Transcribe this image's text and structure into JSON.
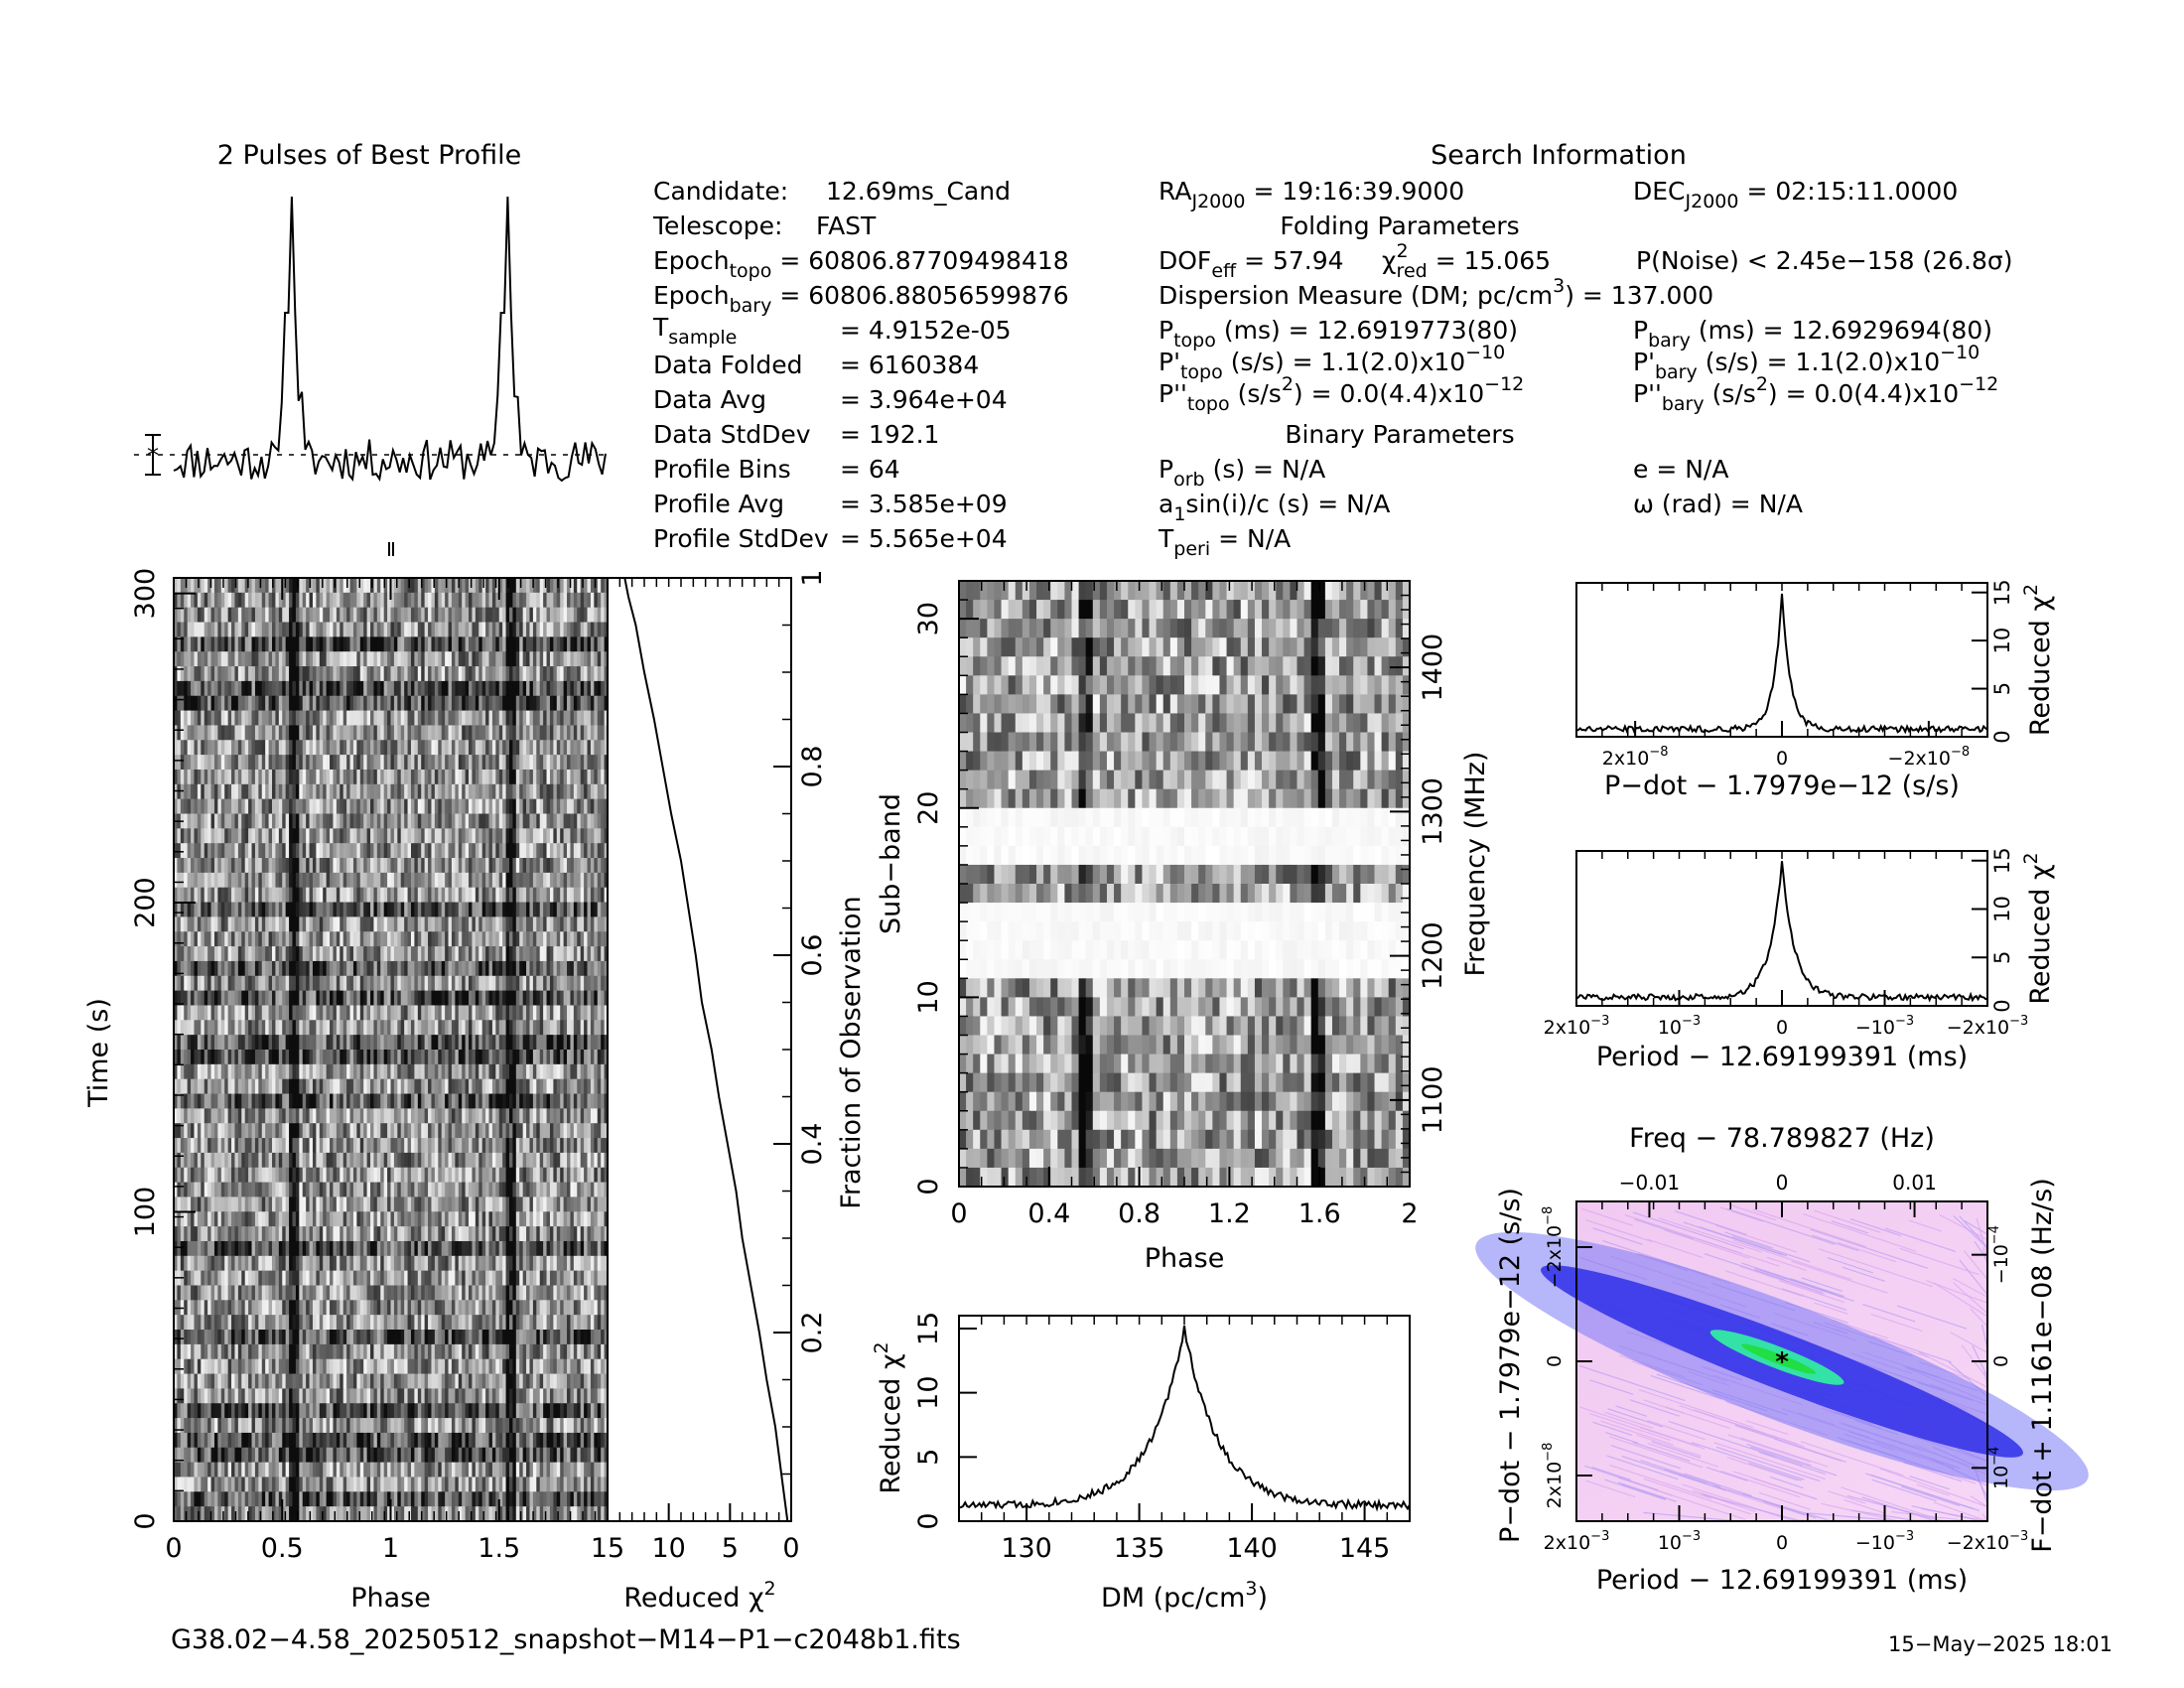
{
  "profile_title": "2 Pulses of Best Profile",
  "search_info": {
    "title": "Search Information",
    "candidate": {
      "label": "Candidate:",
      "value": "12.69ms_Cand"
    },
    "telescope": {
      "label": "Telescope:",
      "value": "FAST"
    },
    "epoch_topo": {
      "label": "Epoch",
      "sub": "topo",
      "value": "= 60806.87709498418"
    },
    "epoch_bary": {
      "label": "Epoch",
      "sub": "bary",
      "value": "= 60806.88056599876"
    },
    "t_sample": {
      "label": "T",
      "sub": "sample",
      "value": "=   4.9152e-05"
    },
    "data_folded": {
      "label": "Data Folded",
      "value": "=   6160384"
    },
    "data_avg": {
      "label": "Data Avg",
      "value": "=   3.964e+04"
    },
    "data_stddev": {
      "label": "Data StdDev",
      "value": "=   192.1"
    },
    "profile_bins": {
      "label": "Profile Bins",
      "value": "=   64"
    },
    "profile_avg": {
      "label": "Profile Avg",
      "value": "=   3.585e+09"
    },
    "profile_stddev": {
      "label": "Profile StdDev",
      "value": "=   5.565e+04"
    },
    "ra": {
      "label": "RA",
      "sub": "J2000",
      "value": "= 19:16:39.9000"
    },
    "dec": {
      "label": "DEC",
      "sub": "J2000",
      "value": "= 02:15:11.0000"
    },
    "folding_title": "Folding Parameters",
    "dof": {
      "label": "DOF",
      "sub": "eff",
      "value": "= 57.94"
    },
    "chi2": {
      "label": "χ",
      "sup": "2",
      "sub": "red",
      "value": "= 15.065"
    },
    "pnoise": "P(Noise) < 2.45e−158  (26.8σ)",
    "dm": {
      "label": "Dispersion Measure (DM; pc/cm",
      "sup": "3",
      "value": ") = 137.000"
    },
    "p_topo": {
      "label": "P",
      "sub": "topo",
      "value": "(ms)  =  12.6919773(80)"
    },
    "p_bary": {
      "label": "P",
      "sub": "bary",
      "value": "(ms)  =  12.6929694(80)"
    },
    "pd_topo": {
      "label": "P'",
      "sub": "topo",
      "value": "(s/s)  =  1.1(2.0)x10",
      "exp": "−10"
    },
    "pd_bary": {
      "label": "P'",
      "sub": "bary",
      "value": "(s/s)  =  1.1(2.0)x10",
      "exp": "−10"
    },
    "pdd_topo": {
      "label": "P''",
      "sub": "topo",
      "value": "(s/s",
      "sup": "2",
      "value2": ") = 0.0(4.4)x10",
      "exp": "−12"
    },
    "pdd_bary": {
      "label": "P''",
      "sub": "bary",
      "value": "(s/s",
      "sup": "2",
      "value2": ") = 0.0(4.4)x10",
      "exp": "−12"
    },
    "binary_title": "Binary Parameters",
    "porb": {
      "label": "P",
      "sub": "orb",
      "value": "(s) = N/A"
    },
    "e": "e = N/A",
    "a1": {
      "label": "a",
      "sub": "1",
      "value": "sin(i)/c (s) = N/A"
    },
    "omega": "ω (rad) = N/A",
    "tperi": {
      "label": "T",
      "sub": "peri",
      "value": "= N/A"
    }
  },
  "footer": {
    "filename": "G38.02−4.58_20250512_snapshot−M14−P1−c2048b1.fits",
    "date": "15−May−2025 18:01"
  },
  "colors": {
    "ink": "#000000",
    "grid_bg": "#ffffff",
    "heat_bg": "#f4c8f4",
    "heat_mid": "#3a3aff",
    "heat_peak": "#33dd88"
  },
  "chart_data": [
    {
      "id": "profile",
      "type": "line",
      "title": "2 Pulses of Best Profile",
      "x": {
        "range": [
          0,
          2
        ]
      },
      "peaks": [
        0.545,
        1.545
      ],
      "baseline": 0.0,
      "peak_height": 1.0
    },
    {
      "id": "time_phase",
      "type": "heatmap",
      "xlabel": "Phase",
      "ylabel": "Time (s)",
      "xlim": [
        0,
        2
      ],
      "ylim": [
        0,
        305
      ],
      "x_ticks": [
        "0",
        "0.5",
        "1",
        "1.5"
      ],
      "x_tick_values": [
        0,
        0.5,
        1,
        1.5
      ],
      "y_ticks": [
        "0",
        "100",
        "200",
        "300"
      ],
      "y_tick_values": [
        0,
        100,
        200,
        300
      ],
      "pulse_phases": [
        0.55,
        1.55
      ]
    },
    {
      "id": "chi2_vs_time",
      "type": "line",
      "xlabel": "Reduced χ",
      "xlabel_sup": "2",
      "ylabel": "Fraction of Observation",
      "xlim": [
        15,
        0
      ],
      "ylim": [
        0,
        1
      ],
      "x_ticks": [
        "15",
        "10",
        "5",
        "0"
      ],
      "x_tick_values": [
        15,
        10,
        5,
        0
      ],
      "y_ticks": [
        "0.2",
        "0.4",
        "0.6",
        "0.8",
        "1"
      ],
      "y_tick_values": [
        0.2,
        0.4,
        0.6,
        0.8,
        1.0
      ],
      "points": [
        [
          0.3,
          0.0
        ],
        [
          0.8,
          0.05
        ],
        [
          1.3,
          0.1
        ],
        [
          2.0,
          0.15
        ],
        [
          2.6,
          0.2
        ],
        [
          3.3,
          0.25
        ],
        [
          4.0,
          0.3
        ],
        [
          4.5,
          0.35
        ],
        [
          5.2,
          0.4
        ],
        [
          5.9,
          0.45
        ],
        [
          6.5,
          0.5
        ],
        [
          7.3,
          0.55
        ],
        [
          7.8,
          0.6
        ],
        [
          8.4,
          0.65
        ],
        [
          9.0,
          0.7
        ],
        [
          9.8,
          0.75
        ],
        [
          10.5,
          0.8
        ],
        [
          11.2,
          0.85
        ],
        [
          12.0,
          0.9
        ],
        [
          12.7,
          0.95
        ],
        [
          13.3,
          0.98
        ],
        [
          13.6,
          1.0
        ]
      ]
    },
    {
      "id": "freq_phase",
      "type": "heatmap",
      "xlabel": "Phase",
      "ylabel": "Sub−band",
      "ylabel2": "Frequency (MHz)",
      "xlim": [
        0,
        2
      ],
      "ylim": [
        0,
        32
      ],
      "x_ticks": [
        "0",
        "0.4",
        "0.8",
        "1.2",
        "1.6",
        "2"
      ],
      "x_tick_values": [
        0,
        0.4,
        0.8,
        1.2,
        1.6,
        2.0
      ],
      "y_ticks": [
        "0",
        "10",
        "20",
        "30"
      ],
      "y_tick_values": [
        0,
        10,
        20,
        30
      ],
      "y2_ticks": [
        "1100",
        "1200",
        "1300",
        "1400"
      ],
      "y2_tick_values": [
        1100,
        1200,
        1300,
        1400
      ],
      "y2_lim": [
        1040,
        1460
      ],
      "pulse_phases": [
        0.56,
        1.58
      ],
      "masked_subbands": [
        11,
        12,
        13,
        14,
        17,
        18,
        19
      ]
    },
    {
      "id": "dm_curve",
      "type": "line",
      "xlabel": "DM (pc/cm",
      "xlabel_sup": "3",
      "xlabel_end": ")",
      "ylabel": "Reduced χ",
      "ylabel_sup": "2",
      "xlim": [
        127,
        147
      ],
      "ylim": [
        0,
        16
      ],
      "x_ticks": [
        "130",
        "135",
        "140",
        "145"
      ],
      "x_tick_values": [
        130,
        135,
        140,
        145
      ],
      "y_ticks": [
        "0",
        "5",
        "10",
        "15"
      ],
      "y_tick_values": [
        0,
        5,
        10,
        15
      ],
      "peak_x": 137.0,
      "peak_y": 15.065,
      "base_y": 1.2
    },
    {
      "id": "pdot_curve",
      "type": "line",
      "xlabel": "P−dot − 1.7979e−12 (s/s)",
      "ylabel": "Reduced χ",
      "ylabel_sup": "2",
      "xlim": [
        2.8e-08,
        -2.8e-08
      ],
      "ylim": [
        0,
        16
      ],
      "x_ticks": [
        "2x10",
        "0",
        "−2x10"
      ],
      "x_tick_exp": [
        "−8",
        "",
        "−8"
      ],
      "x_tick_values": [
        2e-08,
        0,
        -2e-08
      ],
      "y_ticks": [
        "0",
        "5",
        "10",
        "15"
      ],
      "y_tick_values": [
        0,
        5,
        10,
        15
      ],
      "peak_x": 0.0,
      "peak_y": 15.0,
      "base_y": 0.8
    },
    {
      "id": "period_curve",
      "type": "line",
      "xlabel": "Period − 12.69199391 (ms)",
      "ylabel": "Reduced χ",
      "ylabel_sup": "2",
      "xlim": [
        0.002,
        -0.002
      ],
      "ylim": [
        0,
        16
      ],
      "x_ticks": [
        "2x10",
        "10",
        "0",
        "−10",
        "−2x10"
      ],
      "x_tick_exp": [
        "−3",
        "−3",
        "",
        "−3",
        "−3"
      ],
      "x_tick_values": [
        0.002,
        0.001,
        0,
        -0.001,
        -0.002
      ],
      "y_ticks": [
        "0",
        "5",
        "10",
        "15"
      ],
      "y_tick_values": [
        0,
        5,
        10,
        15
      ],
      "peak_x": 0.0,
      "peak_y": 14.8,
      "base_y": 0.9
    },
    {
      "id": "ppdot_map",
      "type": "heatmap",
      "top_label": "Freq − 78.789827 (Hz)",
      "xlabel": "Period − 12.69199391 (ms)",
      "ylabel": "P−dot − 1.7979e−12 (s/s)",
      "ylabel2": "F−dot + 1.1161e−08 (Hz/s)",
      "xlim": [
        0.002,
        -0.002
      ],
      "ylim": [
        2.8e-08,
        -2.8e-08
      ],
      "x_ticks": [
        "2x10",
        "10",
        "0",
        "−10",
        "−2x10"
      ],
      "x_tick_exp": [
        "−3",
        "−3",
        "",
        "−3",
        "−3"
      ],
      "x_tick_values": [
        0.002,
        0.001,
        0,
        -0.001,
        -0.002
      ],
      "top_ticks": [
        "−0.01",
        "0",
        "0.01"
      ],
      "top_tick_values": [
        -0.01,
        0,
        0.01
      ],
      "y_ticks": [
        "−2x10",
        "0",
        "2x10"
      ],
      "y_tick_exp": [
        "−8",
        "",
        "−8"
      ],
      "y_tick_values": [
        -2e-08,
        0,
        2e-08
      ],
      "y2_ticks": [
        "10",
        "0",
        "−10"
      ],
      "y2_tick_exp": [
        "−4",
        "",
        "−4"
      ],
      "y2_tick_values": [
        0.0001,
        0,
        -0.0001
      ],
      "best_x": 0.0,
      "best_y": 0.0
    }
  ]
}
